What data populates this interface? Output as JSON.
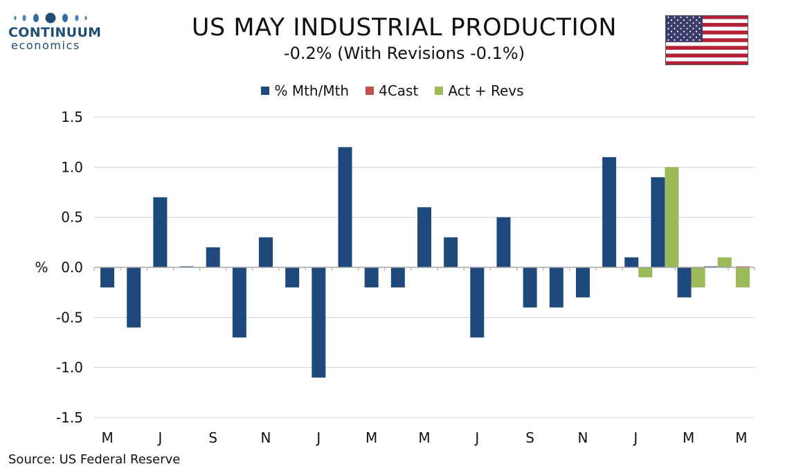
{
  "logo": {
    "line1": "CONTINUUM",
    "line2": "economics"
  },
  "header": {
    "title": "US MAY INDUSTRIAL PRODUCTION",
    "subtitle": "-0.2% (With Revisions -0.1%)"
  },
  "source": "Source: US Federal Reserve",
  "colors": {
    "mth": "#1f497d",
    "fcast": "#c0504d",
    "revs": "#9bbb59",
    "grid": "#d0d0d0",
    "axis": "#a6a6a6"
  },
  "chart_data": {
    "type": "bar",
    "title": "US MAY INDUSTRIAL PRODUCTION",
    "subtitle": "-0.2% (With Revisions -0.1%)",
    "ylabel": "%",
    "ylim": [
      -1.5,
      1.5
    ],
    "yticks": [
      "1.5",
      "1.0",
      "0.5",
      "0.0",
      "-0.5",
      "-1.0",
      "-1.5"
    ],
    "grid": true,
    "legend_position": "top-center",
    "x_tick_labels": [
      "M",
      "",
      "J",
      "",
      "S",
      "",
      "N",
      "",
      "J",
      "",
      "M",
      "",
      "M",
      "",
      "J",
      "",
      "S",
      "",
      "N",
      "",
      "J",
      "",
      "M",
      "",
      "M"
    ],
    "series": [
      {
        "name": "% Mth/Mth",
        "values": [
          -0.2,
          -0.6,
          0.7,
          0.01,
          0.2,
          -0.7,
          0.3,
          -0.2,
          -1.1,
          1.2,
          -0.2,
          -0.2,
          0.6,
          0.3,
          -0.7,
          0.5,
          -0.4,
          -0.4,
          -0.3,
          1.1,
          0.1,
          0.9,
          -0.3,
          0.01,
          null
        ]
      },
      {
        "name": "4Cast",
        "values": [
          null,
          null,
          null,
          null,
          null,
          null,
          null,
          null,
          null,
          null,
          null,
          null,
          null,
          null,
          null,
          null,
          null,
          null,
          null,
          null,
          null,
          null,
          null,
          null,
          0.01
        ]
      },
      {
        "name": "Act + Revs",
        "values": [
          null,
          null,
          null,
          null,
          null,
          null,
          null,
          null,
          null,
          null,
          null,
          null,
          null,
          null,
          null,
          null,
          null,
          null,
          null,
          null,
          -0.1,
          1.0,
          -0.2,
          0.1,
          -0.2
        ]
      }
    ]
  }
}
